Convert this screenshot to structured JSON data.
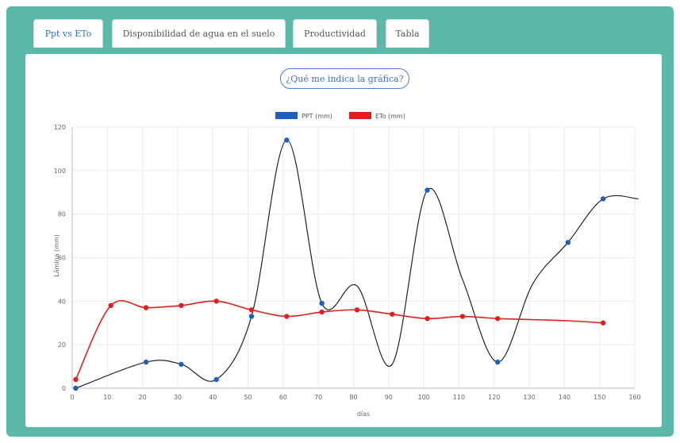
{
  "tabs": [
    {
      "label": "Ppt vs ETo",
      "active": true
    },
    {
      "label": "Disponibilidad de agua en el suelo",
      "active": false
    },
    {
      "label": "Productividad",
      "active": false
    },
    {
      "label": "Tabla",
      "active": false
    }
  ],
  "help_button_label": "¿Qué me indica la gráfica?",
  "colors": {
    "frame": "#5cb8a8",
    "ppt": "#1f5fbf",
    "eto": "#e02020",
    "active_tab_text": "#2f6fc4"
  },
  "chart_data": {
    "type": "line",
    "xlabel": "días",
    "ylabel": "Lámina (mm)",
    "xlim": [
      0,
      160
    ],
    "ylim": [
      0,
      120
    ],
    "x_ticks": [
      0,
      10,
      20,
      30,
      40,
      50,
      60,
      70,
      80,
      90,
      100,
      110,
      120,
      130,
      140,
      150,
      160
    ],
    "y_ticks": [
      0,
      20,
      40,
      60,
      80,
      100,
      120
    ],
    "grid": true,
    "legend_position": "top-center",
    "series": [
      {
        "name": "PPT (mm)",
        "color": "#1f5fbf",
        "x": [
          1,
          21,
          31,
          41,
          51,
          61,
          71,
          81,
          91,
          101,
          111,
          121,
          131,
          141,
          151,
          161
        ],
        "y": [
          0,
          12,
          11,
          4,
          33,
          114,
          39,
          47,
          11,
          91,
          50,
          12,
          48,
          67,
          87,
          87
        ],
        "point_x": [
          1,
          21,
          31,
          41,
          51,
          61,
          71,
          101,
          121,
          141,
          151
        ],
        "point_y": [
          0,
          12,
          11,
          4,
          33,
          114,
          39,
          91,
          12,
          67,
          87
        ]
      },
      {
        "name": "ETo (mm)",
        "color": "#e02020",
        "x": [
          1,
          11,
          21,
          31,
          41,
          51,
          61,
          71,
          81,
          91,
          101,
          111,
          121,
          131,
          141,
          151
        ],
        "y": [
          4,
          38,
          37,
          38,
          40,
          36,
          33,
          35,
          36,
          34,
          32,
          33,
          32,
          31.5,
          31,
          30
        ],
        "point_x": [
          1,
          11,
          21,
          31,
          41,
          51,
          61,
          71,
          81,
          91,
          101,
          111,
          121,
          151
        ],
        "point_y": [
          4,
          38,
          37,
          38,
          40,
          36,
          33,
          35,
          36,
          34,
          32,
          33,
          32,
          30
        ]
      }
    ]
  }
}
